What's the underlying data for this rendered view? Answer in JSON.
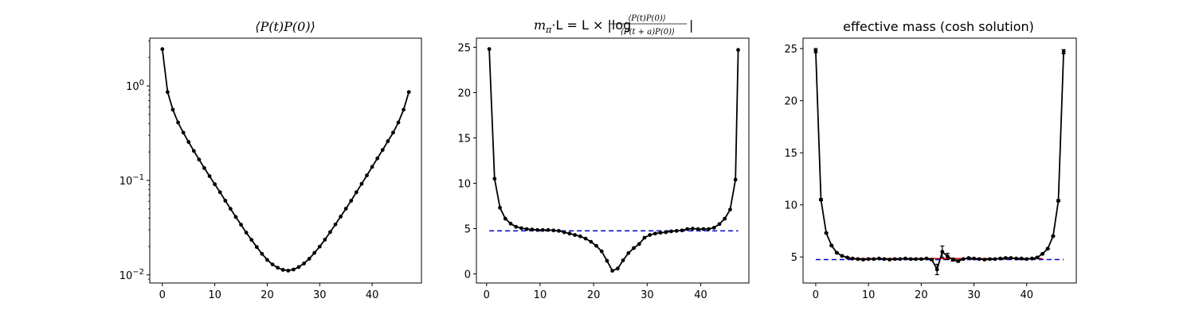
{
  "chart_data": [
    {
      "type": "line",
      "title": "⟨P(t)P(0)⟩",
      "xlabel": "",
      "ylabel": "",
      "yscale": "log",
      "xlim": [
        -2.4,
        49.4
      ],
      "ylim": [
        0.0082,
        3.2
      ],
      "xticks": [
        0,
        10,
        20,
        30,
        40
      ],
      "xtick_labels": [
        "0",
        "10",
        "20",
        "30",
        "40"
      ],
      "yticks": [
        0.01,
        0.1,
        1
      ],
      "ytick_labels": [
        "10⁻²",
        "10⁻¹",
        "10⁰"
      ],
      "series": [
        {
          "color": "#000000",
          "x": [
            0,
            1,
            2,
            3,
            4,
            5,
            6,
            7,
            8,
            9,
            10,
            11,
            12,
            13,
            14,
            15,
            16,
            17,
            18,
            19,
            20,
            21,
            22,
            23,
            24,
            25,
            26,
            27,
            28,
            29,
            30,
            31,
            32,
            33,
            34,
            35,
            36,
            37,
            38,
            39,
            40,
            41,
            42,
            43,
            44,
            45,
            46,
            47
          ],
          "y": [
            2.45,
            0.86,
            0.56,
            0.41,
            0.32,
            0.255,
            0.205,
            0.166,
            0.135,
            0.111,
            0.091,
            0.075,
            0.061,
            0.05,
            0.041,
            0.034,
            0.028,
            0.0235,
            0.0197,
            0.0167,
            0.0144,
            0.0129,
            0.0119,
            0.0113,
            0.0111,
            0.0114,
            0.0121,
            0.0132,
            0.0148,
            0.0171,
            0.0199,
            0.0236,
            0.0284,
            0.0342,
            0.0414,
            0.0502,
            0.061,
            0.075,
            0.092,
            0.113,
            0.139,
            0.171,
            0.21,
            0.26,
            0.32,
            0.41,
            0.56,
            0.86
          ]
        }
      ]
    },
    {
      "type": "line",
      "title": "m_π·L = L × |log ⟨P(t)P(0)⟩ / ⟨P(t+a)P(0)⟩|",
      "title_lhs_m": "m",
      "title_lhs_sub": "π",
      "title_lhs_rest": "·L = L × |log",
      "title_num": "⟨P(t)P(0)⟩",
      "title_den": "⟨P(t + a)P(0)⟩",
      "title_end": "|",
      "xlabel": "",
      "ylabel": "",
      "yscale": "linear",
      "xlim": [
        -1.9,
        49.0
      ],
      "ylim": [
        -1.0,
        26.0
      ],
      "xticks": [
        0,
        10,
        20,
        30,
        40
      ],
      "xtick_labels": [
        "0",
        "10",
        "20",
        "30",
        "40"
      ],
      "yticks": [
        0,
        5,
        10,
        15,
        20,
        25
      ],
      "ytick_labels": [
        "0",
        "5",
        "10",
        "15",
        "20",
        "25"
      ],
      "hline": {
        "y": 4.75,
        "color": "#0000cc",
        "style": "dashed",
        "x_from": 0.5,
        "x_to": 47
      },
      "series": [
        {
          "color": "#000000",
          "x": [
            0.5,
            1.5,
            2.5,
            3.5,
            4.5,
            5.5,
            6.5,
            7.5,
            8.5,
            9.5,
            10.5,
            11.5,
            12.5,
            13.5,
            14.5,
            15.5,
            16.5,
            17.5,
            18.5,
            19.5,
            20.5,
            21.5,
            22.5,
            23.5,
            24.5,
            25.5,
            26.5,
            27.5,
            28.5,
            29.5,
            30.5,
            31.5,
            32.5,
            33.5,
            34.5,
            35.5,
            36.5,
            37.5,
            38.5,
            39.5,
            40.5,
            41.5,
            42.5,
            43.5,
            44.5,
            45.5,
            46.5,
            47.0
          ],
          "y": [
            24.8,
            10.5,
            7.3,
            6.1,
            5.55,
            5.2,
            5.05,
            4.95,
            4.9,
            4.85,
            4.85,
            4.85,
            4.8,
            4.75,
            4.6,
            4.45,
            4.3,
            4.15,
            3.9,
            3.55,
            3.1,
            2.5,
            1.45,
            0.35,
            0.6,
            1.5,
            2.3,
            2.85,
            3.3,
            4.0,
            4.3,
            4.45,
            4.55,
            4.6,
            4.7,
            4.75,
            4.8,
            4.95,
            5.0,
            4.95,
            4.95,
            4.95,
            5.1,
            5.5,
            6.1,
            7.1,
            10.4,
            24.7
          ]
        }
      ]
    },
    {
      "type": "line",
      "title": "effective mass (cosh solution)",
      "xlabel": "",
      "ylabel": "",
      "yscale": "linear",
      "xlim": [
        -2.4,
        49.4
      ],
      "ylim": [
        2.5,
        26.0
      ],
      "xticks": [
        0,
        10,
        20,
        30,
        40
      ],
      "xtick_labels": [
        "0",
        "10",
        "20",
        "30",
        "40"
      ],
      "yticks": [
        5,
        10,
        15,
        20,
        25
      ],
      "ytick_labels": [
        "5",
        "10",
        "15",
        "20",
        "25"
      ],
      "hline": {
        "y": 4.75,
        "color": "#0000cc",
        "style": "dashed",
        "x_from": 0,
        "x_to": 47
      },
      "fit_line": {
        "y": 4.85,
        "color": "#cc0000",
        "x_from": 6,
        "x_to": 43
      },
      "series": [
        {
          "color": "#000000",
          "x": [
            0,
            1,
            2,
            3,
            4,
            5,
            6,
            7,
            8,
            9,
            10,
            11,
            12,
            13,
            14,
            15,
            16,
            17,
            18,
            19,
            20,
            21,
            22,
            23,
            24,
            25,
            26,
            27,
            28,
            29,
            30,
            31,
            32,
            33,
            34,
            35,
            36,
            37,
            38,
            39,
            40,
            41,
            42,
            43,
            44,
            45,
            46,
            47
          ],
          "y": [
            24.8,
            10.5,
            7.3,
            6.1,
            5.4,
            5.1,
            4.95,
            4.85,
            4.8,
            4.75,
            4.8,
            4.8,
            4.85,
            4.8,
            4.75,
            4.8,
            4.8,
            4.85,
            4.8,
            4.8,
            4.8,
            4.85,
            4.75,
            3.8,
            5.5,
            5.05,
            4.75,
            4.6,
            4.8,
            4.9,
            4.85,
            4.8,
            4.75,
            4.8,
            4.8,
            4.85,
            4.9,
            4.9,
            4.85,
            4.85,
            4.8,
            4.85,
            4.95,
            5.3,
            5.8,
            7.0,
            10.4,
            24.7
          ],
          "yerr": [
            0.2,
            0.1,
            0.05,
            0.05,
            0.05,
            0.05,
            0.05,
            0.05,
            0.05,
            0.05,
            0.05,
            0.05,
            0.05,
            0.05,
            0.05,
            0.05,
            0.05,
            0.05,
            0.05,
            0.05,
            0.05,
            0.05,
            0.1,
            0.5,
            0.55,
            0.3,
            0.15,
            0.1,
            0.05,
            0.05,
            0.05,
            0.05,
            0.05,
            0.05,
            0.05,
            0.05,
            0.05,
            0.05,
            0.05,
            0.05,
            0.05,
            0.05,
            0.05,
            0.05,
            0.05,
            0.05,
            0.1,
            0.2
          ]
        }
      ]
    }
  ]
}
